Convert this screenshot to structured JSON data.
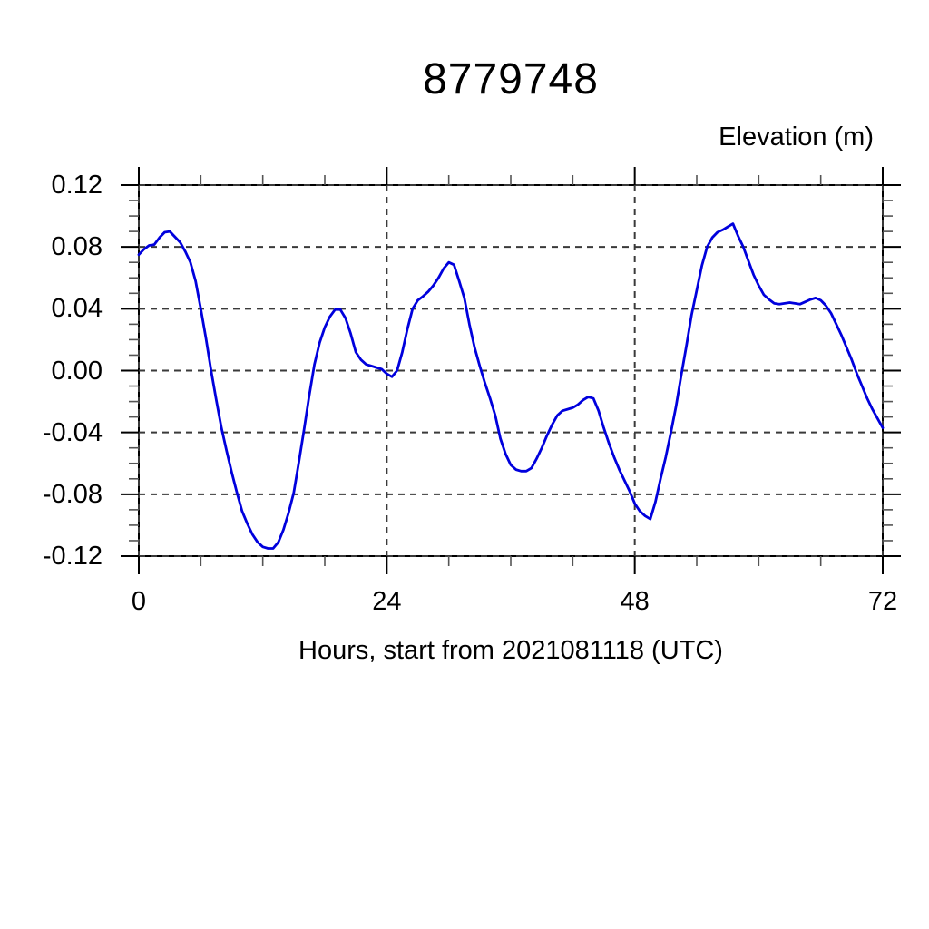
{
  "chart_data": {
    "type": "line",
    "title": "8779748",
    "ylabel": "Elevation (m)",
    "xlabel": "Hours, start from 2021081118 (UTC)",
    "xlim": [
      0,
      72
    ],
    "ylim": [
      -0.12,
      0.12
    ],
    "x_major_ticks": [
      0,
      24,
      48,
      72
    ],
    "x_tick_labels": [
      "0",
      "24",
      "48",
      "72"
    ],
    "x_minor_step": 6,
    "y_major_ticks": [
      0.12,
      0.08,
      0.04,
      0,
      -0.04,
      -0.08,
      -0.12
    ],
    "y_tick_labels": [
      "0.12",
      "0.08",
      "0.04",
      "0.00",
      "-0.04",
      "-0.08",
      "-0.12"
    ],
    "y_minor_step": 0.01,
    "grid": "dashed lines at every major tick",
    "legend": "none",
    "colors": {
      "line": "#0000dd",
      "axis": "#000000",
      "grid": "#3a3a3a",
      "minor_tick": "#555555",
      "background": "#ffffff"
    },
    "series": [
      {
        "name": "elevation",
        "points": [
          [
            0,
            0.075
          ],
          [
            0.5,
            0.0785
          ],
          [
            1,
            0.081
          ],
          [
            1.5,
            0.0815
          ],
          [
            2,
            0.086
          ],
          [
            2.5,
            0.0895
          ],
          [
            3,
            0.09
          ],
          [
            3.5,
            0.0865
          ],
          [
            4,
            0.083
          ],
          [
            4.5,
            0.077
          ],
          [
            5,
            0.07
          ],
          [
            5.5,
            0.058
          ],
          [
            6,
            0.04
          ],
          [
            6.5,
            0.021
          ],
          [
            7,
            0
          ],
          [
            7.5,
            -0.019
          ],
          [
            8,
            -0.037
          ],
          [
            8.5,
            -0.052
          ],
          [
            9,
            -0.066
          ],
          [
            9.5,
            -0.079
          ],
          [
            10,
            -0.091
          ],
          [
            10.5,
            -0.099
          ],
          [
            11,
            -0.106
          ],
          [
            11.5,
            -0.111
          ],
          [
            12,
            -0.114
          ],
          [
            12.5,
            -0.115
          ],
          [
            13,
            -0.115
          ],
          [
            13.5,
            -0.111
          ],
          [
            14,
            -0.103
          ],
          [
            14.5,
            -0.092
          ],
          [
            15,
            -0.079
          ],
          [
            15.5,
            -0.059
          ],
          [
            16,
            -0.038
          ],
          [
            16.5,
            -0.016
          ],
          [
            17,
            0.004
          ],
          [
            17.5,
            0.018
          ],
          [
            18,
            0.028
          ],
          [
            18.5,
            0.035
          ],
          [
            19,
            0.0395
          ],
          [
            19.5,
            0.0395
          ],
          [
            20,
            0.034
          ],
          [
            20.5,
            0.024
          ],
          [
            21,
            0.012
          ],
          [
            21.5,
            0.007
          ],
          [
            22,
            0.004
          ],
          [
            22.5,
            0.003
          ],
          [
            23,
            0.002
          ],
          [
            23.5,
            0.001
          ],
          [
            24,
            -0.002
          ],
          [
            24.5,
            -0.004
          ],
          [
            25,
            0
          ],
          [
            25.5,
            0.012
          ],
          [
            26,
            0.027
          ],
          [
            26.5,
            0.04
          ],
          [
            27,
            0.0455
          ],
          [
            27.5,
            0.048
          ],
          [
            28,
            0.051
          ],
          [
            28.5,
            0.055
          ],
          [
            29,
            0.06
          ],
          [
            29.5,
            0.066
          ],
          [
            30,
            0.07
          ],
          [
            30.5,
            0.0685
          ],
          [
            31,
            0.058
          ],
          [
            31.5,
            0.047
          ],
          [
            32,
            0.03
          ],
          [
            32.5,
            0.015
          ],
          [
            33,
            0.003
          ],
          [
            33.5,
            -0.008
          ],
          [
            34,
            -0.018
          ],
          [
            34.5,
            -0.029
          ],
          [
            35,
            -0.044
          ],
          [
            35.5,
            -0.054
          ],
          [
            36,
            -0.061
          ],
          [
            36.5,
            -0.064
          ],
          [
            37,
            -0.065
          ],
          [
            37.5,
            -0.065
          ],
          [
            38,
            -0.063
          ],
          [
            38.5,
            -0.057
          ],
          [
            39,
            -0.05
          ],
          [
            39.5,
            -0.042
          ],
          [
            40,
            -0.035
          ],
          [
            40.5,
            -0.029
          ],
          [
            41,
            -0.026
          ],
          [
            41.5,
            -0.025
          ],
          [
            42,
            -0.024
          ],
          [
            42.5,
            -0.022
          ],
          [
            43,
            -0.019
          ],
          [
            43.5,
            -0.017
          ],
          [
            44,
            -0.018
          ],
          [
            44.5,
            -0.026
          ],
          [
            45,
            -0.037
          ],
          [
            45.5,
            -0.047
          ],
          [
            46,
            -0.056
          ],
          [
            46.5,
            -0.064
          ],
          [
            47,
            -0.071
          ],
          [
            47.5,
            -0.078
          ],
          [
            48,
            -0.086
          ],
          [
            48.5,
            -0.091
          ],
          [
            49,
            -0.094
          ],
          [
            49.5,
            -0.096
          ],
          [
            50,
            -0.085
          ],
          [
            50.5,
            -0.07
          ],
          [
            51,
            -0.056
          ],
          [
            51.5,
            -0.04
          ],
          [
            52,
            -0.023
          ],
          [
            52.5,
            -0.003
          ],
          [
            53,
            0.016
          ],
          [
            53.5,
            0.036
          ],
          [
            54,
            0.052
          ],
          [
            54.5,
            0.068
          ],
          [
            55,
            0.08
          ],
          [
            55.5,
            0.086
          ],
          [
            56,
            0.0895
          ],
          [
            56.5,
            0.091
          ],
          [
            57,
            0.093
          ],
          [
            57.5,
            0.095
          ],
          [
            58,
            0.087
          ],
          [
            58.5,
            0.08
          ],
          [
            59,
            0.071
          ],
          [
            59.5,
            0.062
          ],
          [
            60,
            0.055
          ],
          [
            60.5,
            0.049
          ],
          [
            61,
            0.046
          ],
          [
            61.5,
            0.0435
          ],
          [
            62,
            0.043
          ],
          [
            62.5,
            0.0435
          ],
          [
            63,
            0.044
          ],
          [
            63.5,
            0.0435
          ],
          [
            64,
            0.043
          ],
          [
            64.5,
            0.0445
          ],
          [
            65,
            0.046
          ],
          [
            65.5,
            0.047
          ],
          [
            66,
            0.0455
          ],
          [
            66.5,
            0.042
          ],
          [
            67,
            0.037
          ],
          [
            67.5,
            0.03
          ],
          [
            68,
            0.023
          ],
          [
            68.5,
            0.015
          ],
          [
            69,
            0.007
          ],
          [
            69.5,
            -0.002
          ],
          [
            70,
            -0.01
          ],
          [
            70.5,
            -0.018
          ],
          [
            71,
            -0.025
          ],
          [
            71.5,
            -0.031
          ],
          [
            72,
            -0.037
          ]
        ]
      }
    ]
  }
}
